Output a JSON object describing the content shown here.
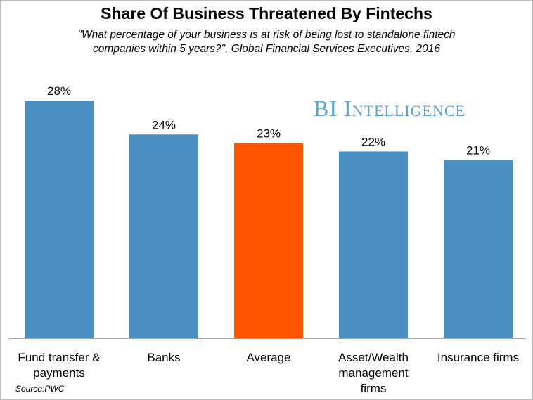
{
  "title": "Share Of Business Threatened By Fintechs",
  "subtitle_lines": [
    "\"What percentage of your business is at risk of being lost to standalone fintech",
    "companies within 5 years?\", Global Financial Services Executives, 2016"
  ],
  "brand": "BI Intelligence",
  "source": "Source:PWC",
  "colors": {
    "bar_default": "#4a90c2",
    "bar_highlight": "#ff5500",
    "brand": "#5ba3d4",
    "axis": "#a6a6a6"
  },
  "chart_data": {
    "type": "bar",
    "categories": [
      "Fund transfer & payments",
      "Banks",
      "Average",
      "Asset/Wealth management firms",
      "Insurance firms"
    ],
    "category_lines": [
      [
        "Fund transfer &",
        "payments"
      ],
      [
        "Banks"
      ],
      [
        "Average"
      ],
      [
        "Asset/Wealth",
        "management",
        "firms"
      ],
      [
        "Insurance firms"
      ]
    ],
    "values": [
      28,
      24,
      23,
      22,
      21
    ],
    "value_labels": [
      "28%",
      "24%",
      "23%",
      "22%",
      "21%"
    ],
    "highlight_index": 2,
    "ylim": [
      0,
      28
    ],
    "grid": false,
    "legend": "none"
  }
}
